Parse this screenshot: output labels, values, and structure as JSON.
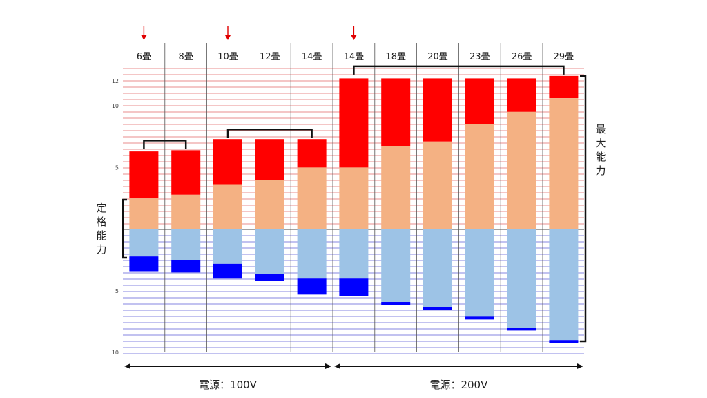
{
  "chart_data": {
    "type": "bar",
    "categories": [
      "6畳",
      "8畳",
      "10畳",
      "12畳",
      "14畳",
      "14畳",
      "18畳",
      "20畳",
      "23畳",
      "26畳",
      "29畳"
    ],
    "upper_ticks": [
      "12",
      "10",
      "5"
    ],
    "lower_ticks": [
      "5",
      "10"
    ],
    "rated_label": "定格能力",
    "max_label": "最大能力",
    "power_groups": [
      {
        "label": "電源：100V",
        "from": 0,
        "to": 4
      },
      {
        "label": "電源：200V",
        "from": 5,
        "to": 10
      }
    ],
    "highlighted": [
      0,
      2,
      5
    ],
    "brackets": [
      [
        0,
        1
      ],
      [
        2,
        4
      ],
      [
        5,
        10
      ]
    ],
    "series": [
      {
        "key": "cool_rated",
        "values": [
          2.5,
          2.8,
          3.6,
          4.0,
          5.0,
          5.0,
          6.7,
          7.1,
          8.5,
          9.5,
          10.6
        ]
      },
      {
        "key": "cool_max",
        "values": [
          6.3,
          6.4,
          7.3,
          7.3,
          7.3,
          12.2,
          12.2,
          12.2,
          12.2,
          12.2,
          12.4
        ]
      },
      {
        "key": "heat_rated",
        "values": [
          2.2,
          2.5,
          2.8,
          3.6,
          4.0,
          4.0,
          5.9,
          6.3,
          7.1,
          8.0,
          9.0
        ]
      },
      {
        "key": "heat_max",
        "values": [
          3.4,
          3.5,
          4.0,
          4.2,
          5.3,
          5.4,
          6.0,
          6.4,
          7.3,
          8.1,
          9.1
        ]
      }
    ],
    "colors": {
      "cool_max": "#ff0000",
      "cool_rated": "#f4b183",
      "heat_rated": "#9dc3e6",
      "heat_max": "#0000ff",
      "upper_grid": "#e06666",
      "lower_grid": "#5b5bd6",
      "arrow": "#e00000",
      "divider": "#555555",
      "bracket": "#111111"
    }
  }
}
